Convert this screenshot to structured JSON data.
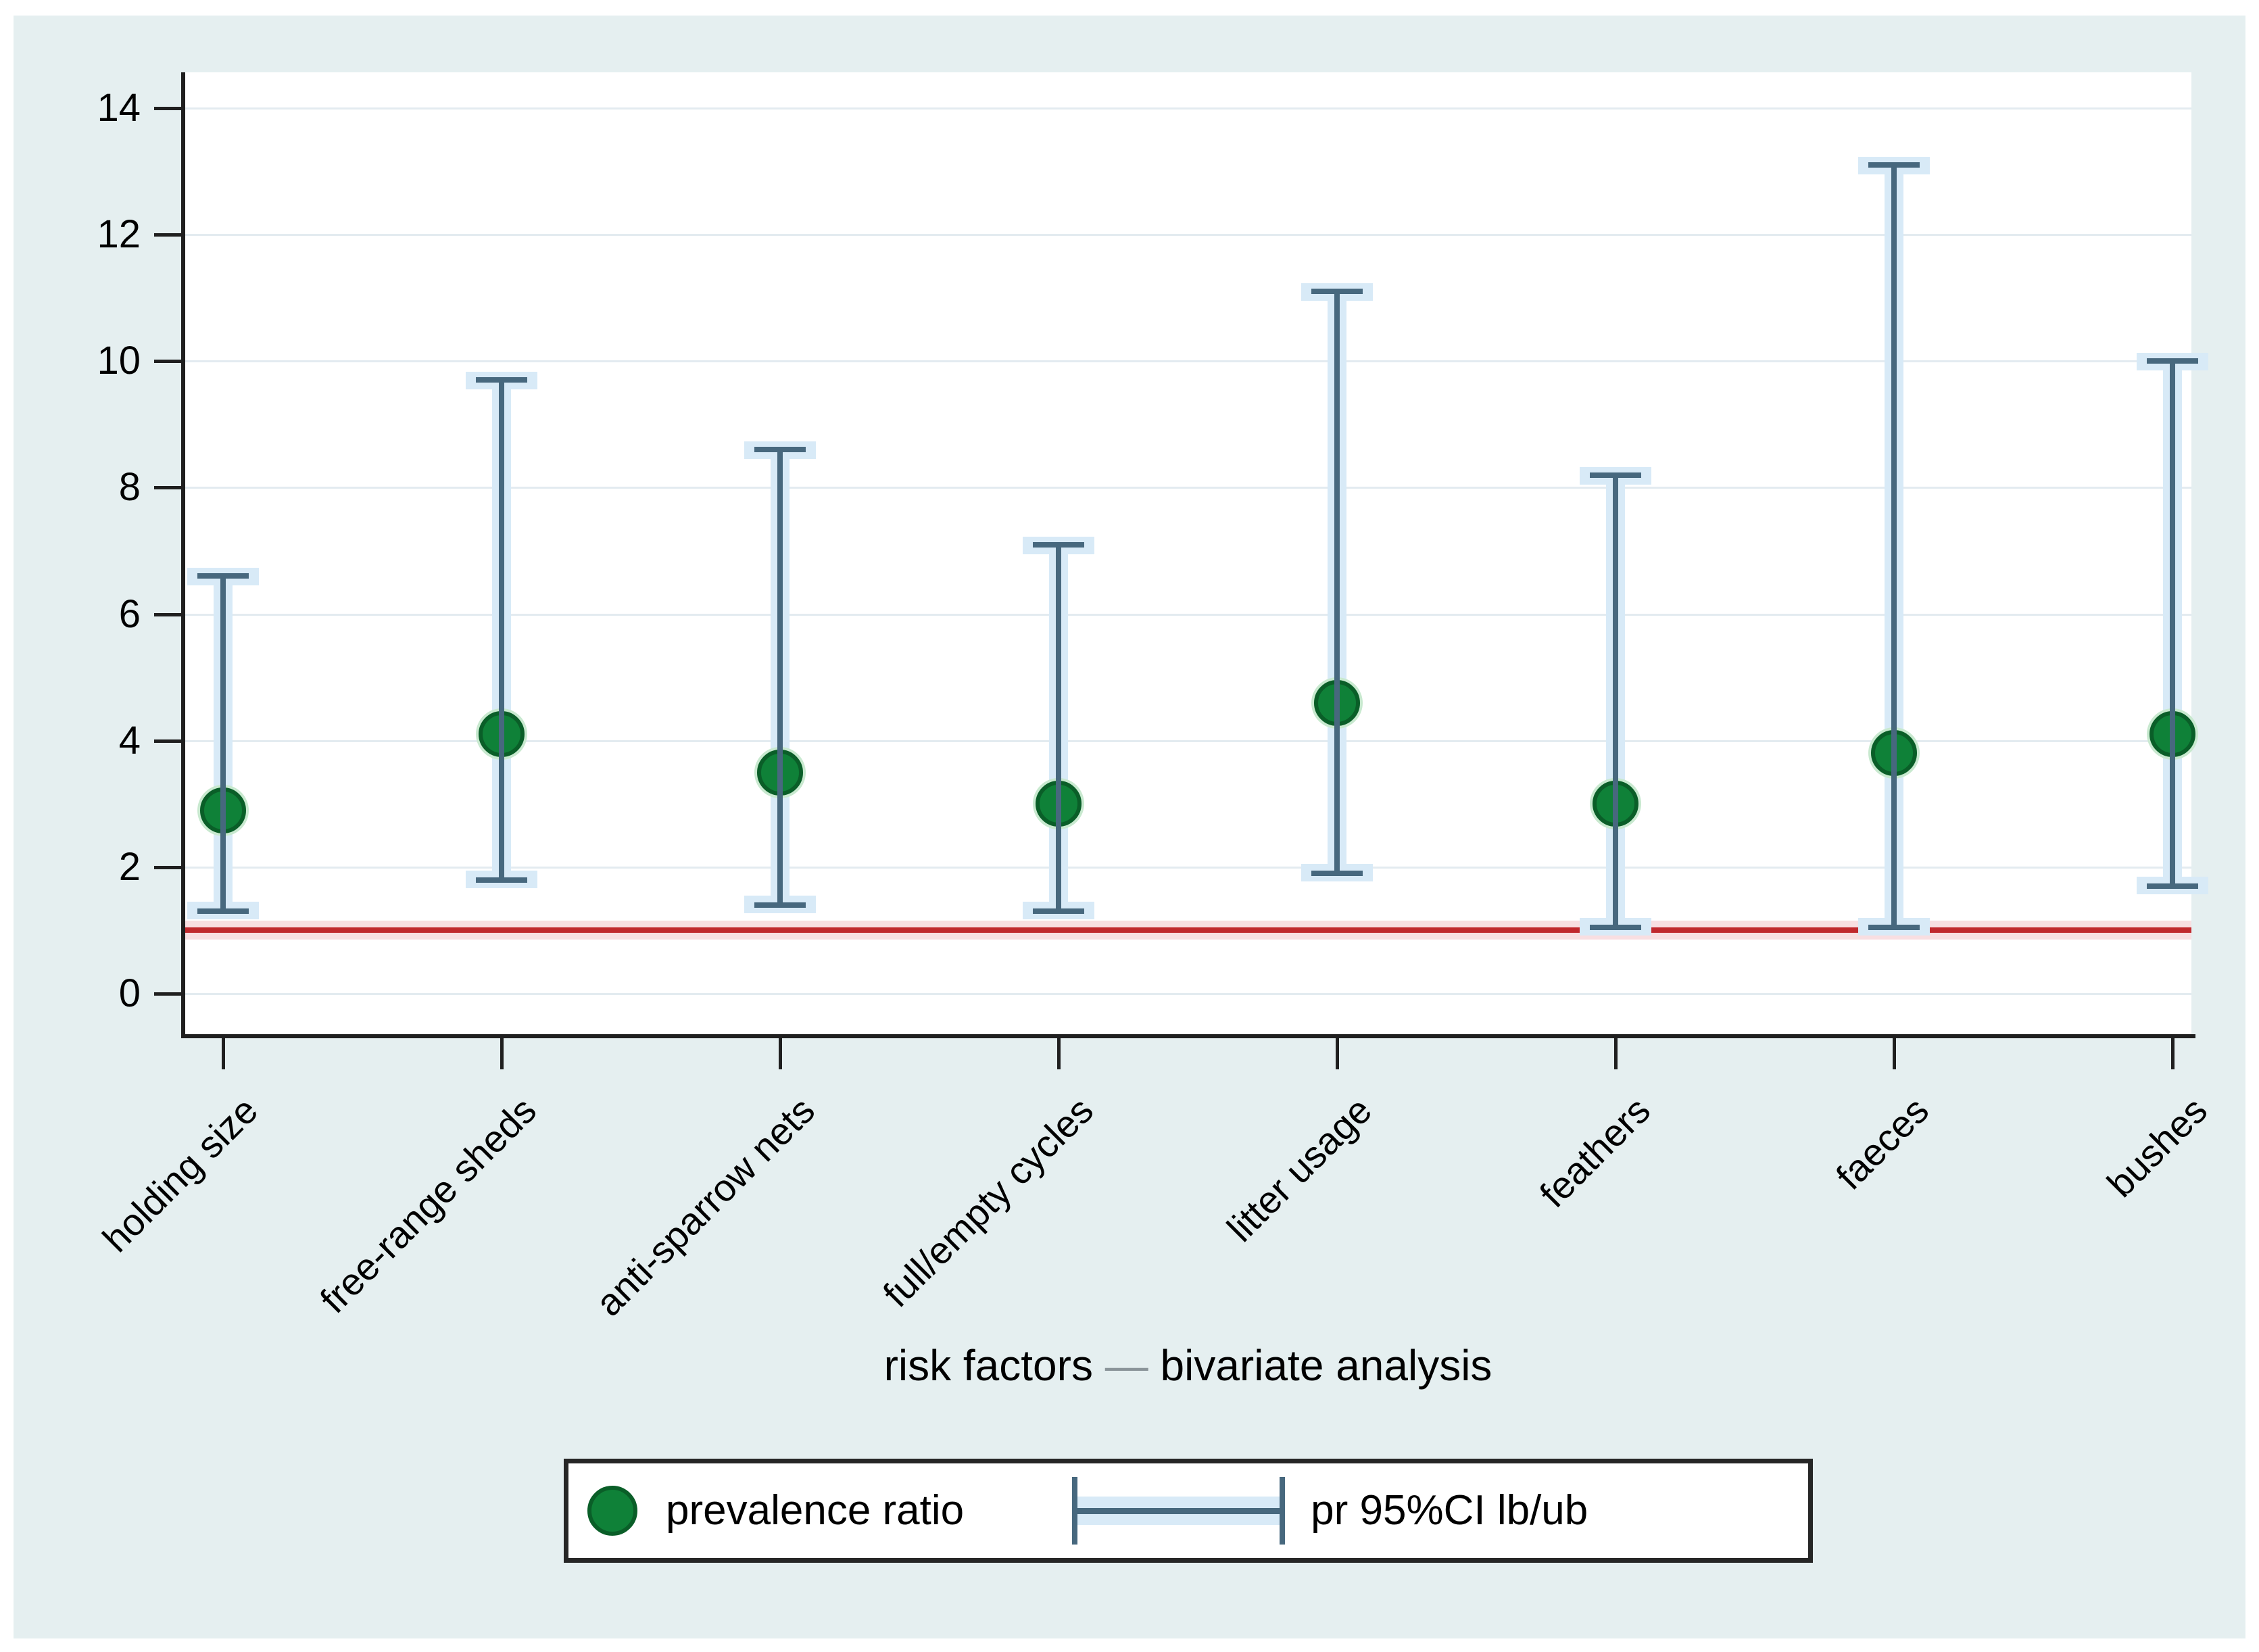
{
  "chart_data": {
    "type": "scatter",
    "title": "",
    "xlabel": "risk factors — bivariate analysis",
    "xlabel_parts": {
      "left": "risk factors",
      "dash": "—",
      "right": "bivariate analysis"
    },
    "ylabel": "",
    "ylim": [
      0,
      14
    ],
    "yticks": [
      0,
      2,
      4,
      6,
      8,
      10,
      12,
      14
    ],
    "grid": true,
    "reference_line_y": 1,
    "categories": [
      "holding size",
      "free-range sheds",
      "anti-sparrow nets",
      "full/empty cycles",
      "litter usage",
      "feathers",
      "faeces",
      "bushes"
    ],
    "series": [
      {
        "name": "prevalence ratio",
        "values": [
          2.9,
          4.1,
          3.5,
          3.0,
          4.6,
          3.0,
          3.8,
          4.1
        ]
      },
      {
        "name": "pr 95%CI lb/ub",
        "lower": [
          1.3,
          1.8,
          1.4,
          1.3,
          1.9,
          1.05,
          1.05,
          1.7
        ],
        "upper": [
          6.6,
          9.7,
          8.6,
          7.1,
          11.1,
          8.2,
          13.1,
          10.0
        ]
      }
    ],
    "legend": {
      "position": "bottom",
      "entries": [
        "prevalence ratio",
        "pr 95%CI lb/ub"
      ]
    }
  },
  "colors": {
    "panel_background": "#e5eff0",
    "plot_background": "#ffffff",
    "gridline": "#e3ebf0",
    "axis": "#1f1f1f",
    "ci_line": "#47687e",
    "ci_halo": "#d8eaf7",
    "marker_fill": "#0f8138",
    "marker_edge": "#0a5e28",
    "reference_line": "#c0282d",
    "reference_halo": "#f8dee1",
    "text": "#000000"
  }
}
